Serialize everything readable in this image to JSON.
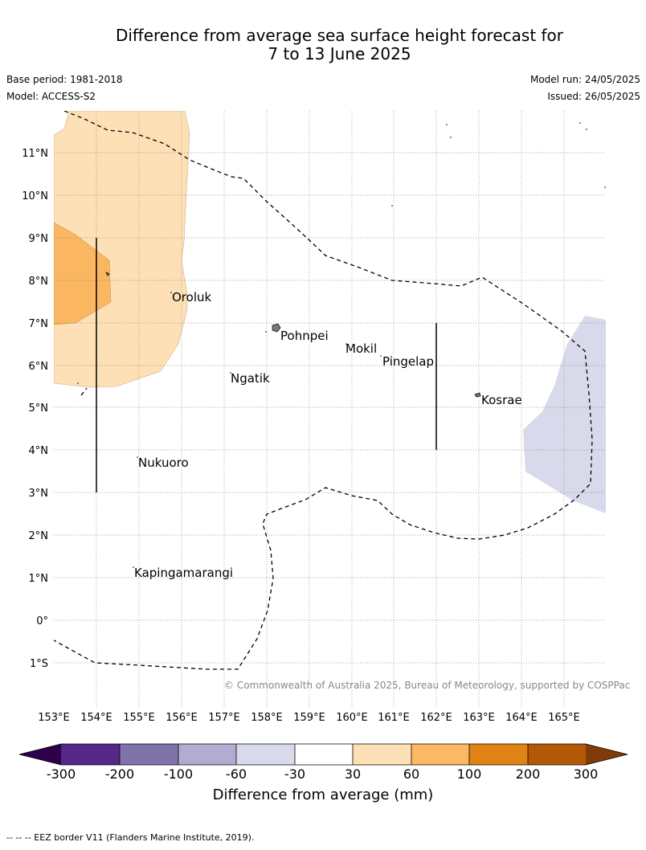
{
  "title": {
    "line1": "Difference from average sea surface height forecast for",
    "line2": "7 to 13 June 2025"
  },
  "meta": {
    "base_period": "Base period: 1981-2018",
    "model": "Model: ACCESS-S2",
    "model_run": "Model run: 24/05/2025",
    "issued": "Issued: 26/05/2025"
  },
  "map": {
    "lat_labels": [
      "11°N",
      "10°N",
      "9°N",
      "8°N",
      "7°N",
      "6°N",
      "5°N",
      "4°N",
      "3°N",
      "2°N",
      "1°N",
      "0°",
      "1°S"
    ],
    "lon_labels": [
      "153°E",
      "154°E",
      "155°E",
      "156°E",
      "157°E",
      "158°E",
      "159°E",
      "160°E",
      "161°E",
      "162°E",
      "163°E",
      "164°E",
      "165°E"
    ],
    "places": [
      "Oroluk",
      "Pohnpei",
      "Mokil",
      "Pingelap",
      "Ngatik",
      "Kosrae",
      "Nukuoro",
      "Kapingamarangi"
    ],
    "copyright": "© Commonwealth of Australia 2025, Bureau of Meteorology, supported by COSPPac",
    "colors": {
      "pos_30_60": "#fde0b6",
      "pos_60_100": "#fbb661",
      "neg_30_60": "#d8d9eb",
      "eez": "#000000"
    }
  },
  "colorbar": {
    "ticks": [
      "-300",
      "-200",
      "-100",
      "-60",
      "-30",
      "30",
      "60",
      "100",
      "200",
      "300"
    ],
    "title": "Difference from average (mm)",
    "colors": [
      "#2d004b",
      "#542788",
      "#8073ac",
      "#b2abd2",
      "#d8daeb",
      "#ffffff",
      "#fee0b6",
      "#fdb863",
      "#e08214",
      "#b35806",
      "#7f3b08"
    ]
  },
  "footnote": "--  --  -- EEZ border V11 (Flanders Marine Institute, 2019)."
}
